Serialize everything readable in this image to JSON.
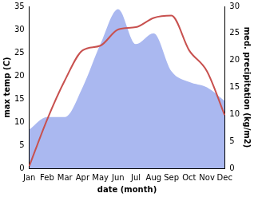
{
  "chart_data": {
    "type": "line",
    "xlabel": "date (month)",
    "ylabel": "max temp (C)",
    "y2label": "med. precipitation (kg/m2)",
    "categories": [
      "Jan",
      "Feb",
      "Mar",
      "Apr",
      "May",
      "Jun",
      "Jul",
      "Aug",
      "Sep",
      "Oct",
      "Nov",
      "Dec"
    ],
    "series": [
      {
        "type": "line",
        "color": "#c8514f",
        "values": [
          0.5,
          10.5,
          19,
          25.5,
          26.5,
          30,
          30.5,
          32.5,
          33,
          25.5,
          21,
          11.5
        ]
      },
      {
        "type": "area",
        "color": "#aab8f0",
        "axis": "y2",
        "values": [
          7.2,
          9.5,
          9.5,
          15,
          23,
          29.5,
          23,
          25,
          18,
          16,
          15,
          12.5
        ]
      }
    ],
    "ylim": [
      0,
      35
    ],
    "yticks": [
      0,
      5,
      10,
      15,
      20,
      25,
      30,
      35
    ],
    "y2lim": [
      0,
      30
    ],
    "y2ticks": [
      0,
      5,
      10,
      15,
      20,
      25,
      30
    ],
    "grid": false
  }
}
